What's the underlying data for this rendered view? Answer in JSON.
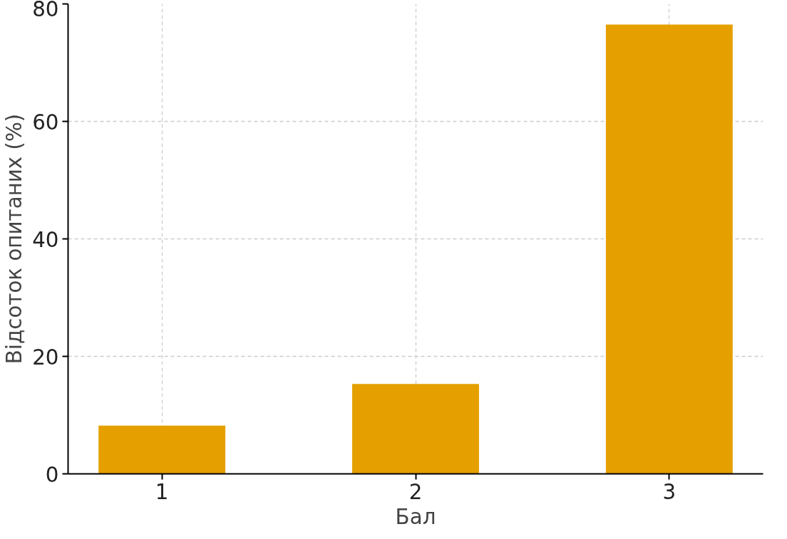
{
  "chart_data": {
    "type": "bar",
    "xlabel": "Бал",
    "ylabel": "Відсоток опитаних (%)",
    "categories": [
      "1",
      "2",
      "3"
    ],
    "values": [
      8.2,
      15.3,
      76.5
    ],
    "color": "#e5a000",
    "ylim": [
      0,
      80
    ],
    "yticks": [
      0,
      20,
      40,
      60,
      80
    ],
    "grid": true
  }
}
